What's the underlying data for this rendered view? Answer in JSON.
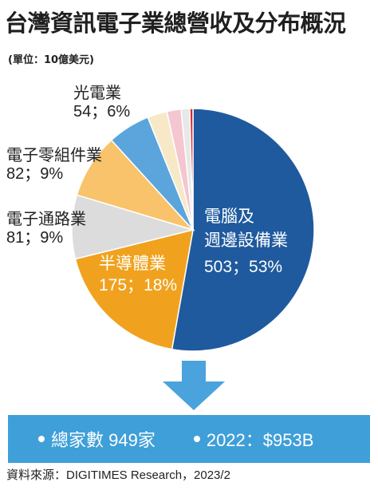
{
  "title": "台灣資訊電子業總營收及分布概況",
  "unit": "(單位：10億美元)",
  "chart_data": {
    "type": "pie",
    "title": "台灣資訊電子業總營收及分布概況",
    "unit": "(單位：10億美元)",
    "slices": [
      {
        "name": "電腦及週邊設備業",
        "value": 503,
        "percent": "53%",
        "color": "#1f5a9e"
      },
      {
        "name": "半導體業",
        "value": 175,
        "percent": "18%",
        "color": "#f0a21e"
      },
      {
        "name": "電子通路業",
        "value": 81,
        "percent": "9%",
        "color": "#dcdcdc"
      },
      {
        "name": "電子零組件業",
        "value": 82,
        "percent": "9%",
        "color": "#f8c36a"
      },
      {
        "name": "光電業",
        "value": 54,
        "percent": "6%",
        "color": "#5ba5dc"
      },
      {
        "name": "",
        "value": 25,
        "percent": "",
        "color": "#f7e9c8"
      },
      {
        "name": "",
        "value": 18,
        "percent": "",
        "color": "#f4c6cf"
      },
      {
        "name": "",
        "value": 11,
        "percent": "",
        "color": "#e8e8e8"
      },
      {
        "name": "",
        "value": 4,
        "percent": "",
        "color": "#e0262c"
      }
    ]
  },
  "labels": {
    "computer_1": "電腦及",
    "computer_2": "週邊設備業",
    "computer_v": "503；53%",
    "semi_1": "半導體業",
    "semi_v": "175；18%",
    "dist_1": "電子通路業",
    "dist_v": "81；9%",
    "comp_1": "電子零組件業",
    "comp_v": "82；9%",
    "opto_1": "光電業",
    "opto_v": "54；6%"
  },
  "summary": {
    "companies": "總家數 949家",
    "revenue": "2022：$953B"
  },
  "source": "資料來源：DIGITIMES Research，2023/2"
}
